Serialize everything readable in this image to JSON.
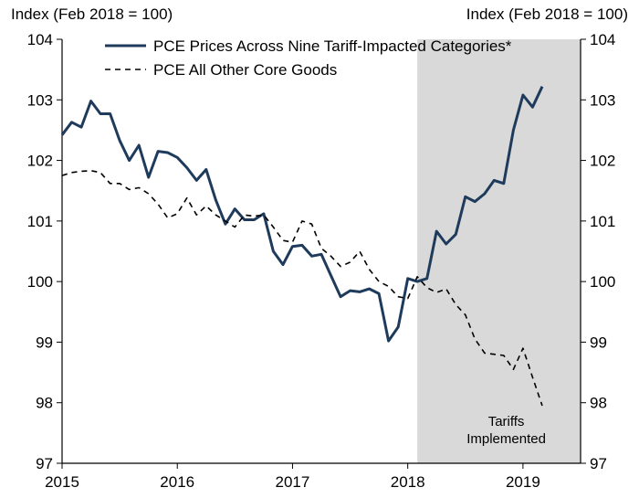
{
  "chart_data": {
    "type": "line",
    "left_axis_title": "Index (Feb 2018 = 100)",
    "right_axis_title": "Index (Feb 2018 = 100)",
    "ylim": [
      97,
      104
    ],
    "yticks": [
      97,
      98,
      99,
      100,
      101,
      102,
      103,
      104
    ],
    "xlim": [
      2015.0,
      2019.5
    ],
    "xticks": [
      2015,
      2016,
      2017,
      2018,
      2019
    ],
    "shaded_region": {
      "start": 2018.083,
      "end": 2019.5,
      "label_line1": "Tariffs",
      "label_line2": "Implemented",
      "color": "#d9d9d9"
    },
    "series": [
      {
        "name": "PCE Prices Across Nine Tariff-Impacted Categories*",
        "color": "#1f3b5c",
        "style": "solid",
        "x": [
          2015.0,
          2015.083,
          2015.167,
          2015.25,
          2015.333,
          2015.417,
          2015.5,
          2015.583,
          2015.667,
          2015.75,
          2015.833,
          2015.917,
          2016.0,
          2016.083,
          2016.167,
          2016.25,
          2016.333,
          2016.417,
          2016.5,
          2016.583,
          2016.667,
          2016.75,
          2016.833,
          2016.917,
          2017.0,
          2017.083,
          2017.167,
          2017.25,
          2017.333,
          2017.417,
          2017.5,
          2017.583,
          2017.667,
          2017.75,
          2017.833,
          2017.917,
          2018.0,
          2018.083,
          2018.167,
          2018.25,
          2018.333,
          2018.417,
          2018.5,
          2018.583,
          2018.667,
          2018.75,
          2018.833,
          2018.917,
          2019.0,
          2019.083,
          2019.167,
          2019.25
        ],
        "values": [
          102.42,
          102.63,
          102.55,
          102.98,
          102.77,
          102.77,
          102.33,
          102.0,
          102.25,
          101.72,
          102.15,
          102.13,
          102.05,
          101.88,
          101.67,
          101.85,
          101.35,
          100.95,
          101.2,
          101.02,
          101.02,
          101.12,
          100.5,
          100.28,
          100.58,
          100.6,
          100.42,
          100.45,
          100.1,
          99.75,
          99.85,
          99.83,
          99.88,
          99.8,
          99.02,
          99.25,
          100.05,
          100.0,
          100.05,
          100.83,
          100.62,
          100.78,
          101.4,
          101.32,
          101.45,
          101.67,
          101.62,
          102.5,
          103.08,
          102.88,
          103.22,
          null
        ]
      },
      {
        "name": "PCE All Other Core Goods",
        "color": "#000000",
        "style": "dashed",
        "x": [
          2015.0,
          2015.083,
          2015.167,
          2015.25,
          2015.333,
          2015.417,
          2015.5,
          2015.583,
          2015.667,
          2015.75,
          2015.833,
          2015.917,
          2016.0,
          2016.083,
          2016.167,
          2016.25,
          2016.333,
          2016.417,
          2016.5,
          2016.583,
          2016.667,
          2016.75,
          2016.833,
          2016.917,
          2017.0,
          2017.083,
          2017.167,
          2017.25,
          2017.333,
          2017.417,
          2017.5,
          2017.583,
          2017.667,
          2017.75,
          2017.833,
          2017.917,
          2018.0,
          2018.083,
          2018.167,
          2018.25,
          2018.333,
          2018.417,
          2018.5,
          2018.583,
          2018.667,
          2018.75,
          2018.833,
          2018.917,
          2019.0,
          2019.083,
          2019.167,
          2019.25
        ],
        "values": [
          101.75,
          101.8,
          101.82,
          101.83,
          101.8,
          101.62,
          101.62,
          101.52,
          101.55,
          101.45,
          101.28,
          101.05,
          101.12,
          101.38,
          101.1,
          101.25,
          101.1,
          101.0,
          100.9,
          101.1,
          101.08,
          101.1,
          100.9,
          100.68,
          100.65,
          101.0,
          100.95,
          100.55,
          100.42,
          100.25,
          100.32,
          100.5,
          100.2,
          100.0,
          99.92,
          99.75,
          99.72,
          100.08,
          99.9,
          99.82,
          99.88,
          99.62,
          99.45,
          99.05,
          98.82,
          98.8,
          98.78,
          98.55,
          98.9,
          98.42,
          97.95,
          null
        ]
      }
    ]
  }
}
